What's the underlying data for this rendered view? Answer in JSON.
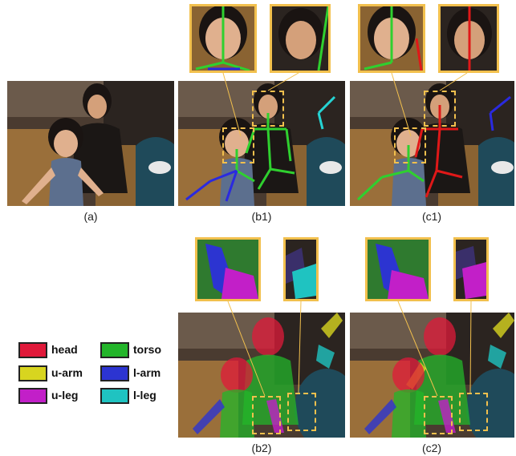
{
  "captions": {
    "a": "(a)",
    "b1": "(b1)",
    "c1": "(c1)",
    "b2": "(b2)",
    "c2": "(c2)"
  },
  "legend": [
    {
      "label": "head",
      "color": "#e0193a"
    },
    {
      "label": "torso",
      "color": "#23b52a"
    },
    {
      "label": "u-arm",
      "color": "#d8d51f"
    },
    {
      "label": "l-arm",
      "color": "#2c34d1"
    },
    {
      "label": "u-leg",
      "color": "#c21fc8"
    },
    {
      "label": "l-leg",
      "color": "#1fc3c1"
    }
  ],
  "colors": {
    "accent_border": "#f2c04d",
    "pose_green": "#2fd02f",
    "pose_blue": "#2a2adf",
    "pose_red": "#e01818",
    "pose_cyan": "#25d3d3"
  }
}
